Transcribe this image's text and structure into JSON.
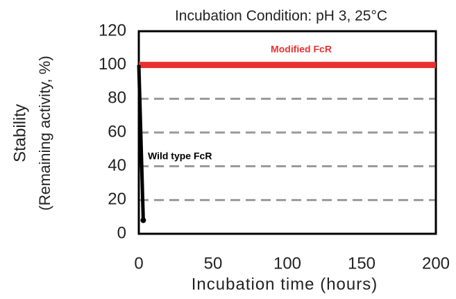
{
  "chart_data": {
    "type": "line",
    "title": "Incubation Condition: pH 3, 25°C",
    "x_label": "Incubation time (hours)",
    "y_label": [
      "Stability",
      "(Remaining activity, %)"
    ],
    "series": [
      {
        "name": "Modified FcR",
        "color": "#e8312f",
        "x": [
          0,
          200
        ],
        "values": [
          100,
          100
        ]
      },
      {
        "name": "Wild type FcR",
        "color": "#000000",
        "x": [
          0,
          3
        ],
        "values": [
          100,
          8
        ]
      }
    ],
    "xlim": [
      0,
      200
    ],
    "xticks": [
      0,
      50,
      100,
      150,
      200
    ],
    "ylim": [
      0,
      120
    ],
    "yticks": [
      0,
      20,
      40,
      60,
      80,
      100,
      120
    ],
    "grid": true
  }
}
